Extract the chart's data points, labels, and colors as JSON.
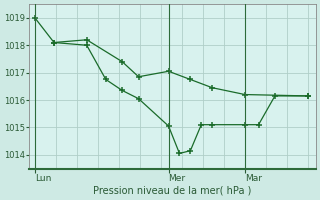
{
  "bg_color": "#ceeae4",
  "plot_bg_color": "#d8f2ee",
  "line_color": "#1a6b2a",
  "grid_color": "#b0cfc8",
  "axis_color": "#2d6b3a",
  "xlabel": "Pression niveau de la mer( hPa )",
  "ylim": [
    1013.5,
    1019.5
  ],
  "yticks": [
    1014,
    1015,
    1016,
    1017,
    1018,
    1019
  ],
  "xtick_labels": [
    "Lun",
    "Mer",
    "Mar"
  ],
  "xtick_positions": [
    0.0,
    0.49,
    0.77
  ],
  "vline_positions": [
    0.0,
    0.49,
    0.77
  ],
  "series1_x": [
    0.0,
    0.07,
    0.19,
    0.26,
    0.32,
    0.38,
    0.49,
    0.53,
    0.57,
    0.61,
    0.65,
    0.77,
    0.82,
    0.88,
    1.0
  ],
  "series1_y": [
    1019.0,
    1018.1,
    1018.0,
    1016.75,
    1016.35,
    1016.05,
    1015.05,
    1014.05,
    1014.15,
    1015.1,
    1015.1,
    1015.1,
    1015.1,
    1016.15,
    1016.15
  ],
  "series2_x": [
    0.07,
    0.19,
    0.32,
    0.38,
    0.49,
    0.57,
    0.65,
    0.77,
    1.0
  ],
  "series2_y": [
    1018.1,
    1018.2,
    1017.4,
    1016.85,
    1017.05,
    1016.75,
    1016.45,
    1016.2,
    1016.15
  ],
  "figsize": [
    3.2,
    2.0
  ],
  "dpi": 100
}
